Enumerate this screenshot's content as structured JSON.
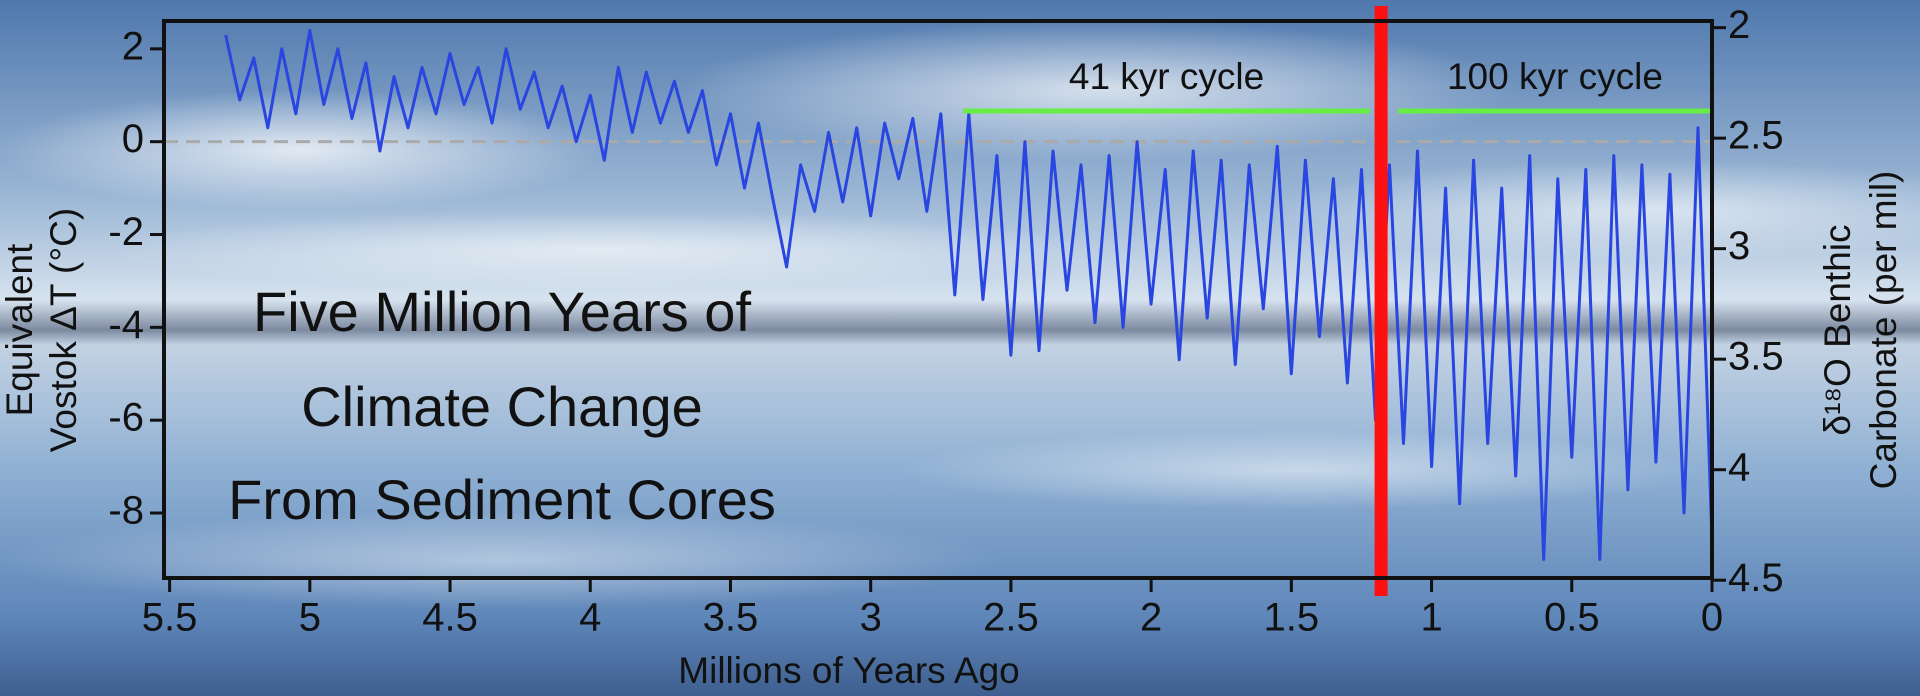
{
  "chart_data": {
    "type": "line",
    "annotation_lines": [
      "Five Million Years of",
      "Climate Change",
      "From Sediment Cores"
    ],
    "x_label": "Millions of Years Ago",
    "y_label_lines": [
      "Equivalent",
      "Vostok ΔT (°C)"
    ],
    "y2_label_lines": [
      "δ¹⁸O Benthic",
      "Carbonate (per mil)"
    ],
    "color": "#2946e0",
    "x": [
      5.3,
      5.25,
      5.2,
      5.15,
      5.1,
      5.05,
      5.0,
      4.95,
      4.9,
      4.85,
      4.8,
      4.75,
      4.7,
      4.65,
      4.6,
      4.55,
      4.5,
      4.45,
      4.4,
      4.35,
      4.3,
      4.25,
      4.2,
      4.15,
      4.1,
      4.05,
      4.0,
      3.95,
      3.9,
      3.85,
      3.8,
      3.75,
      3.7,
      3.65,
      3.6,
      3.55,
      3.5,
      3.45,
      3.4,
      3.35,
      3.3,
      3.25,
      3.2,
      3.15,
      3.1,
      3.05,
      3.0,
      2.95,
      2.9,
      2.85,
      2.8,
      2.75,
      2.7,
      2.65,
      2.6,
      2.55,
      2.5,
      2.45,
      2.4,
      2.35,
      2.3,
      2.25,
      2.2,
      2.15,
      2.1,
      2.05,
      2.0,
      1.95,
      1.9,
      1.85,
      1.8,
      1.75,
      1.7,
      1.65,
      1.6,
      1.55,
      1.5,
      1.45,
      1.4,
      1.35,
      1.3,
      1.25,
      1.2,
      1.15,
      1.1,
      1.05,
      1.0,
      0.95,
      0.9,
      0.85,
      0.8,
      0.75,
      0.7,
      0.65,
      0.6,
      0.55,
      0.5,
      0.45,
      0.4,
      0.35,
      0.3,
      0.25,
      0.2,
      0.15,
      0.1,
      0.05,
      0.0
    ],
    "values": [
      2.3,
      0.9,
      1.8,
      0.3,
      2.0,
      0.6,
      2.4,
      0.8,
      2.0,
      0.5,
      1.7,
      -0.2,
      1.4,
      0.3,
      1.6,
      0.6,
      1.9,
      0.8,
      1.6,
      0.4,
      2.0,
      0.7,
      1.5,
      0.3,
      1.2,
      0.0,
      1.0,
      -0.4,
      1.6,
      0.2,
      1.5,
      0.4,
      1.3,
      0.2,
      1.1,
      -0.5,
      0.6,
      -1.0,
      0.4,
      -1.2,
      -2.7,
      -0.5,
      -1.5,
      0.2,
      -1.3,
      0.3,
      -1.6,
      0.4,
      -0.8,
      0.5,
      -1.5,
      0.6,
      -3.3,
      0.6,
      -3.4,
      -0.3,
      -4.6,
      0.0,
      -4.5,
      -0.2,
      -3.2,
      -0.5,
      -3.9,
      -0.3,
      -4.0,
      0.0,
      -3.5,
      -0.6,
      -4.7,
      -0.2,
      -3.8,
      -0.4,
      -4.8,
      -0.5,
      -3.6,
      -0.1,
      -5.0,
      -0.4,
      -4.2,
      -0.8,
      -5.2,
      -0.6,
      -6.0,
      -0.5,
      -6.5,
      -0.2,
      -7.0,
      -1.0,
      -7.8,
      -0.4,
      -6.5,
      -1.0,
      -7.2,
      -0.3,
      -9.0,
      -0.8,
      -6.8,
      -0.6,
      -9.0,
      -0.3,
      -7.5,
      -0.5,
      -6.9,
      -0.7,
      -8.0,
      0.3,
      -8.6
    ],
    "xlim": [
      5.52,
      0
    ],
    "xticks": [
      5.5,
      5,
      4.5,
      4,
      3.5,
      3,
      2.5,
      2,
      1.5,
      1,
      0.5,
      0
    ],
    "ylim": [
      -9.4,
      2.6
    ],
    "yticks": [
      2,
      0,
      -2,
      -4,
      -6,
      -8
    ],
    "y2lim": [
      4.49,
      1.97
    ],
    "y2ticks": [
      2,
      2.5,
      3,
      3.5,
      4,
      4.5
    ],
    "zero_line": true,
    "spans": [
      {
        "label": "41 kyr cycle",
        "from": 2.67,
        "to": 1.22,
        "color": "#66ee44"
      },
      {
        "label": "100 kyr cycle",
        "from": 1.12,
        "to": 0,
        "color": "#66ee44"
      }
    ],
    "vline": {
      "value": 1.18,
      "color": "#ff1010"
    }
  }
}
